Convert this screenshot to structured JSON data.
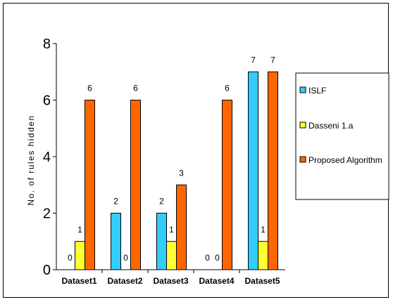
{
  "chart_data": {
    "type": "bar",
    "title": "",
    "xlabel": "",
    "ylabel": "No. of rules hidden",
    "ylim": [
      0,
      8
    ],
    "yticks": [
      0,
      2,
      4,
      6,
      8
    ],
    "categories": [
      "Dataset1",
      "Dataset2",
      "Dataset3",
      "Dataset4",
      "Dataset5"
    ],
    "series": [
      {
        "name": "ISLF",
        "color": "#33CCFF",
        "values": [
          0,
          2,
          2,
          0,
          7
        ]
      },
      {
        "name": "Dasseni 1.a",
        "color": "#FFFF33",
        "values": [
          1,
          0,
          1,
          0,
          1
        ]
      },
      {
        "name": "Proposed Algorithm",
        "color": "#FF6600",
        "values": [
          6,
          6,
          3,
          6,
          7
        ]
      }
    ],
    "legend_position": "right",
    "grid": false
  }
}
